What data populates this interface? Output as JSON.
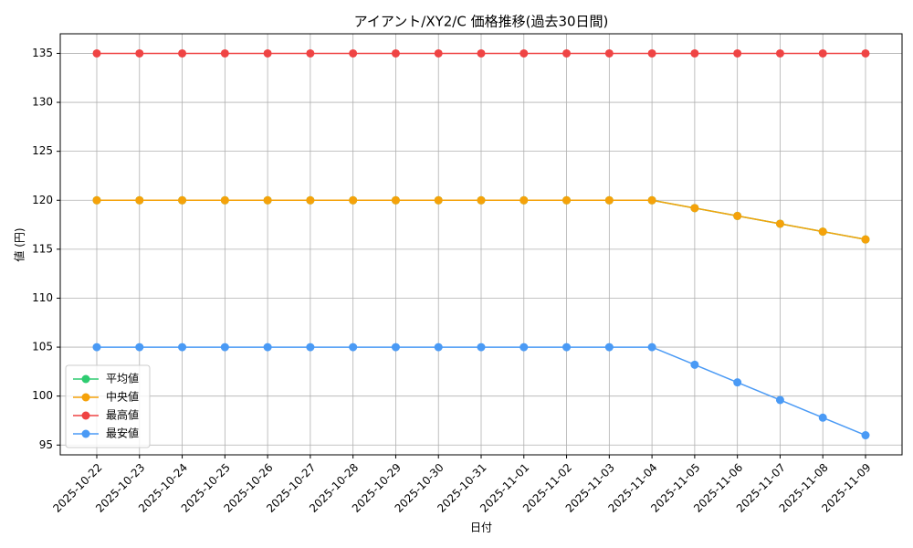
{
  "chart_data": {
    "type": "line",
    "title": "アイアント/XY2/C 価格推移(過去30日間)",
    "x_label": "日付",
    "y_label": "値 (円)",
    "categories": [
      "2025-10-22",
      "2025-10-23",
      "2025-10-24",
      "2025-10-25",
      "2025-10-26",
      "2025-10-27",
      "2025-10-28",
      "2025-10-29",
      "2025-10-30",
      "2025-10-31",
      "2025-11-01",
      "2025-11-02",
      "2025-11-03",
      "2025-11-04",
      "2025-11-05",
      "2025-11-06",
      "2025-11-07",
      "2025-11-08",
      "2025-11-09"
    ],
    "series": [
      {
        "name": "平均値",
        "color": "#2ecc71",
        "values": [
          120,
          120,
          120,
          120,
          120,
          120,
          120,
          120,
          120,
          120,
          120,
          120,
          120,
          120,
          119.2,
          118.4,
          117.6,
          116.8,
          116.0
        ]
      },
      {
        "name": "中央値",
        "color": "#f5a20a",
        "values": [
          120,
          120,
          120,
          120,
          120,
          120,
          120,
          120,
          120,
          120,
          120,
          120,
          120,
          120,
          119.2,
          118.4,
          117.6,
          116.8,
          116.0
        ]
      },
      {
        "name": "最高値",
        "color": "#ef4444",
        "values": [
          135,
          135,
          135,
          135,
          135,
          135,
          135,
          135,
          135,
          135,
          135,
          135,
          135,
          135,
          135,
          135,
          135,
          135,
          135
        ]
      },
      {
        "name": "最安値",
        "color": "#4a9af5",
        "values": [
          105,
          105,
          105,
          105,
          105,
          105,
          105,
          105,
          105,
          105,
          105,
          105,
          105,
          105,
          103.2,
          101.4,
          99.6,
          97.8,
          96.0
        ]
      }
    ],
    "ylim": [
      94,
      137
    ],
    "yticks": [
      95,
      100,
      105,
      110,
      115,
      120,
      125,
      130,
      135
    ],
    "grid": true,
    "legend": "lower left"
  }
}
